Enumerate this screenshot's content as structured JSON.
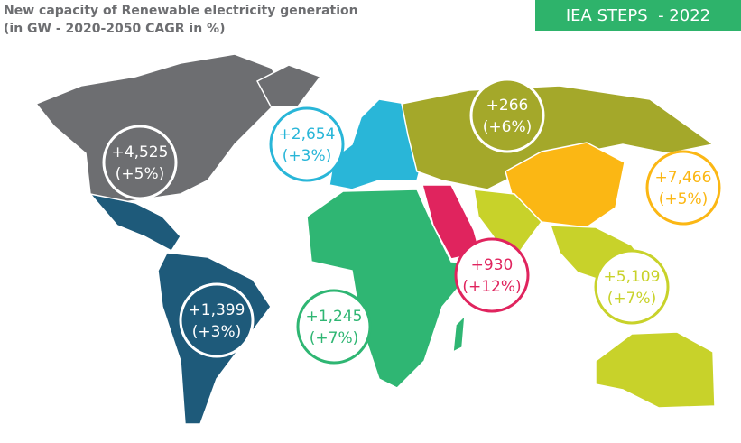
{
  "header": {
    "title_lines": [
      "New capacity of Renewable electricity generation",
      "(in GW - 2020-2050 CAGR in %)"
    ],
    "badge": "IEA STEPS  - 2022"
  },
  "regions": [
    {
      "value": "+4,525",
      "growth": "(+5%)"
    },
    {
      "value": "+2,654",
      "growth": "(+3%)"
    },
    {
      "value": "+266",
      "growth": "(+6%)"
    },
    {
      "value": "+7,466",
      "growth": "(+5%)"
    },
    {
      "value": "+930",
      "growth": "(+12%)"
    },
    {
      "value": "+5,109",
      "growth": "(+7%)"
    },
    {
      "value": "+1,245",
      "growth": "(+7%)"
    },
    {
      "value": "+1,399",
      "growth": "(+3%)"
    }
  ]
}
